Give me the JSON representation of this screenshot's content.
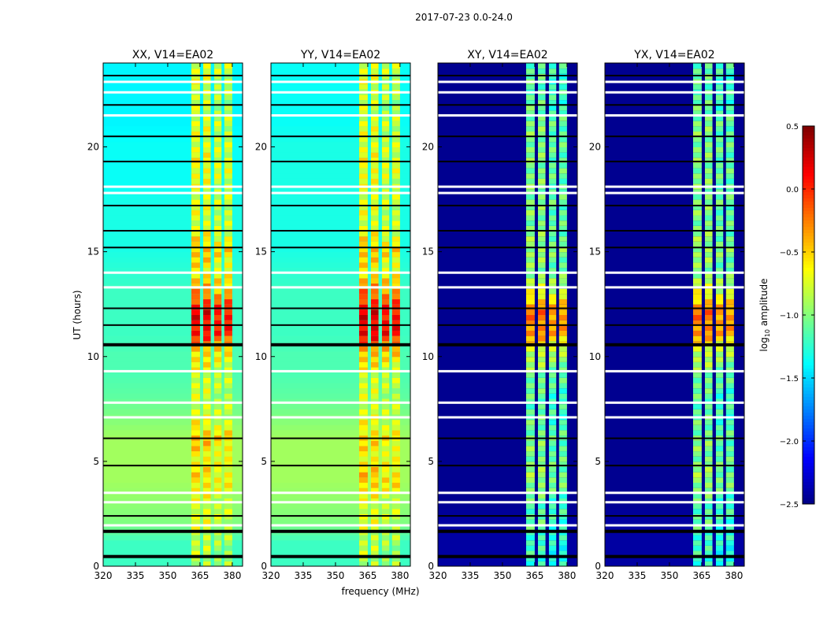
{
  "chart_data": {
    "type": "heatmap",
    "title": "2017-07-23 0.0-24.0",
    "xlabel": "frequency (MHz)",
    "ylabel": "UT (hours)",
    "xlim": [
      320,
      384.8
    ],
    "ylim": [
      0,
      24
    ],
    "xticks": [
      "320",
      "335",
      "350",
      "365",
      "380"
    ],
    "xtick_values": [
      320,
      335,
      350,
      365,
      380
    ],
    "yticks": [
      "0",
      "5",
      "10",
      "15",
      "20"
    ],
    "ytick_values": [
      0,
      5,
      10,
      15,
      20
    ],
    "colorbar": {
      "label_main": "log",
      "label_sub": "10",
      "label_rest": " amplitude",
      "range": [
        -2.5,
        0.5
      ],
      "colormap": "jet",
      "ticks": [
        "0.5",
        "0.0",
        "−0.5",
        "−1.0",
        "−1.5",
        "−2.0",
        "−2.5"
      ],
      "tick_values": [
        0.5,
        0.0,
        -0.5,
        -1.0,
        -1.5,
        -2.0,
        -2.5
      ]
    },
    "rfi_bands_mhz": [
      [
        361,
        365
      ],
      [
        366.5,
        370
      ],
      [
        371.6,
        375
      ],
      [
        376.3,
        380
      ]
    ],
    "flagged_black_ut": [
      0.5,
      1.7,
      2.4,
      4.8,
      6.1,
      10.6,
      11.5,
      12.3,
      15.2,
      16.0,
      17.2,
      19.3,
      20.5,
      22.0,
      23.4
    ],
    "flagged_white_ut": [
      1.95,
      3.05,
      3.5,
      7.1,
      7.8,
      9.3,
      13.3,
      14.0,
      17.8,
      18.1,
      21.5,
      22.6,
      23.1
    ],
    "panels": [
      {
        "title": "XX, V14=EA02",
        "background_by_hour": [
          -1.2,
          -1.2,
          -1.0,
          -0.95,
          -0.9,
          -0.9,
          -0.9,
          -1.0,
          -1.1,
          -1.15,
          -1.15,
          -1.2,
          -1.2,
          -1.2,
          -1.25,
          -1.3,
          -1.3,
          -1.3,
          -1.35,
          -1.35,
          -1.35,
          -1.4,
          -1.4,
          -1.4,
          -1.4
        ],
        "band_by_hour": [
          -0.8,
          -0.8,
          -0.7,
          -0.7,
          -0.5,
          -0.6,
          -0.4,
          -0.7,
          -0.75,
          -0.7,
          -0.5,
          0.1,
          0.2,
          -0.3,
          -0.6,
          -0.4,
          -0.7,
          -0.7,
          -0.7,
          -0.6,
          -0.7,
          -0.7,
          -0.8,
          -0.7,
          -0.7
        ]
      },
      {
        "title": "YY, V14=EA02",
        "background_by_hour": [
          -1.2,
          -1.2,
          -1.0,
          -0.95,
          -0.9,
          -0.9,
          -0.9,
          -1.0,
          -1.1,
          -1.15,
          -1.15,
          -1.2,
          -1.2,
          -1.2,
          -1.25,
          -1.3,
          -1.3,
          -1.3,
          -1.3,
          -1.3,
          -1.3,
          -1.35,
          -1.35,
          -1.35,
          -1.35
        ],
        "band_by_hour": [
          -0.8,
          -0.8,
          -0.7,
          -0.7,
          -0.4,
          -0.6,
          -0.5,
          -0.7,
          -0.75,
          -0.7,
          -0.4,
          0.2,
          0.2,
          -0.2,
          -0.6,
          -0.4,
          -0.7,
          -0.7,
          -0.7,
          -0.6,
          -0.7,
          -0.7,
          -0.8,
          -0.7,
          -0.7
        ]
      },
      {
        "title": "XY, V14=EA02",
        "background_by_hour": [
          -2.4,
          -2.4,
          -2.4,
          -2.45,
          -2.45,
          -2.45,
          -2.45,
          -2.45,
          -2.45,
          -2.45,
          -2.45,
          -2.45,
          -2.45,
          -2.45,
          -2.45,
          -2.45,
          -2.45,
          -2.45,
          -2.45,
          -2.45,
          -2.45,
          -2.45,
          -2.45,
          -2.45,
          -2.45
        ],
        "band_by_hour": [
          -1.2,
          -1.2,
          -1.1,
          -1.1,
          -0.9,
          -1.0,
          -1.0,
          -1.1,
          -1.1,
          -1.0,
          -0.8,
          -0.3,
          -0.2,
          -0.7,
          -1.0,
          -0.9,
          -1.0,
          -1.0,
          -1.0,
          -1.0,
          -1.0,
          -1.0,
          -1.1,
          -1.1,
          -1.1
        ]
      },
      {
        "title": "YX, V14=EA02",
        "background_by_hour": [
          -2.4,
          -2.4,
          -2.4,
          -2.45,
          -2.45,
          -2.45,
          -2.45,
          -2.45,
          -2.45,
          -2.45,
          -2.45,
          -2.45,
          -2.45,
          -2.45,
          -2.45,
          -2.45,
          -2.45,
          -2.45,
          -2.45,
          -2.45,
          -2.45,
          -2.45,
          -2.45,
          -2.45,
          -2.45
        ],
        "band_by_hour": [
          -1.2,
          -1.2,
          -1.1,
          -1.1,
          -0.9,
          -1.0,
          -1.0,
          -1.1,
          -1.1,
          -1.0,
          -0.8,
          -0.3,
          -0.2,
          -0.7,
          -1.0,
          -0.9,
          -1.0,
          -1.0,
          -1.0,
          -1.0,
          -1.0,
          -1.0,
          -1.1,
          -1.1,
          -1.1
        ]
      }
    ]
  }
}
